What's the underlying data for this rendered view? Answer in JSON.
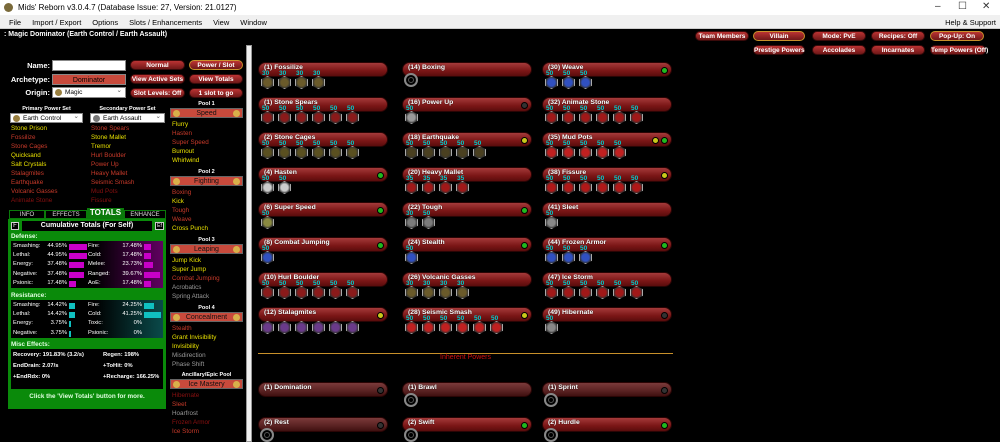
{
  "window": {
    "title": "Mids' Reborn v3.0.4.7 (Database Issue: 27, Version: 21.0127)",
    "menu": [
      "File",
      "Import / Export",
      "Options",
      "Slots / Enhancements",
      "View",
      "Window"
    ],
    "help": "Help & Support"
  },
  "header": ": Magic Dominator (Earth Control / Earth Assault)",
  "top_buttons": [
    "Team Members",
    "Villain",
    "Mode: PvE",
    "Recipes: Off",
    "Pop-Up: On",
    "Prestige Powers",
    "Accolades",
    "Incarnates",
    "Temp Powers (Off)"
  ],
  "char": {
    "name_label": "Name:",
    "name_value": "",
    "archetype_label": "Archetype:",
    "archetype": "Dominator",
    "origin_label": "Origin:",
    "origin": "Magic"
  },
  "mid_buttons": [
    "Normal",
    "Power / Slot",
    "View Active Sets",
    "View Totals",
    "Slot Levels: Off",
    "1 slot to go"
  ],
  "primary": {
    "label": "Primary Power Set",
    "set": "Earth Control",
    "powers": [
      [
        "Stone Prison",
        "y"
      ],
      [
        "Fossilize",
        "r"
      ],
      [
        "Stone Cages",
        "r"
      ],
      [
        "Quicksand",
        "y"
      ],
      [
        "Salt Crystals",
        "y"
      ],
      [
        "Stalagmites",
        "r"
      ],
      [
        "Earthquake",
        "r"
      ],
      [
        "Volcanic Gasses",
        "r"
      ],
      [
        "Animate Stone",
        "d"
      ]
    ]
  },
  "secondary": {
    "label": "Secondary Power Set",
    "set": "Earth Assault",
    "powers": [
      [
        "Stone Spears",
        "r"
      ],
      [
        "Stone Mallet",
        "y"
      ],
      [
        "Tremor",
        "y"
      ],
      [
        "Hurl Boulder",
        "r"
      ],
      [
        "Power Up",
        "r"
      ],
      [
        "Heavy Mallet",
        "r"
      ],
      [
        "Seismic Smash",
        "r"
      ],
      [
        "Mud Pots",
        "d"
      ],
      [
        "Fissure",
        "d"
      ]
    ]
  },
  "pools": [
    {
      "label": "Pool 1",
      "name": "Speed",
      "powers": [
        [
          "Flurry",
          "y"
        ],
        [
          "Hasten",
          "r"
        ],
        [
          "Super Speed",
          "r"
        ],
        [
          "Burnout",
          "y"
        ],
        [
          "Whirlwind",
          "y"
        ]
      ]
    },
    {
      "label": "Pool 2",
      "name": "Fighting",
      "powers": [
        [
          "Boxing",
          "r"
        ],
        [
          "Kick",
          "y"
        ],
        [
          "Tough",
          "r"
        ],
        [
          "Weave",
          "r"
        ],
        [
          "Cross Punch",
          "y"
        ]
      ]
    },
    {
      "label": "Pool 3",
      "name": "Leaping",
      "powers": [
        [
          "Jump Kick",
          "y"
        ],
        [
          "Super Jump",
          "y"
        ],
        [
          "Combat Jumping",
          "r"
        ],
        [
          "Acrobatics",
          "g"
        ],
        [
          "Spring Attack",
          "g"
        ]
      ]
    },
    {
      "label": "Pool 4",
      "name": "Concealment",
      "powers": [
        [
          "Stealth",
          "r"
        ],
        [
          "Grant Invisibility",
          "y"
        ],
        [
          "Invisibility",
          "y"
        ],
        [
          "Misdirection",
          "g"
        ],
        [
          "Phase Shift",
          "g"
        ]
      ]
    },
    {
      "label": "Ancillary/Epic Pool",
      "name": "Ice Mastery",
      "powers": [
        [
          "Hibernate",
          "d"
        ],
        [
          "Sleet",
          "r"
        ],
        [
          "Hoarfrost",
          "g"
        ],
        [
          "Frozen Armor",
          "d"
        ],
        [
          "Ice Storm",
          "r"
        ]
      ]
    }
  ],
  "tabs": [
    "INFO",
    "EFFECTS",
    "TOTALS",
    "ENHANCE"
  ],
  "totals": {
    "title": "Cumulative Totals (For Self)",
    "f": "F",
    "ef": "Ef",
    "defense_label": "Defense:",
    "defense": [
      [
        "Smashing:",
        "44.95%",
        44.95
      ],
      [
        "Lethal:",
        "44.95%",
        44.95
      ],
      [
        "Energy:",
        "37.48%",
        37.48
      ],
      [
        "Negative:",
        "37.48%",
        37.48
      ],
      [
        "Psionic:",
        "17.48%",
        17.48
      ],
      [
        "Fire:",
        "17.48%",
        17.48
      ],
      [
        "Cold:",
        "17.48%",
        17.48
      ],
      [
        "Melee:",
        "23.73%",
        23.73
      ],
      [
        "Ranged:",
        "39.67%",
        39.67
      ],
      [
        "AoE:",
        "17.48%",
        17.48
      ]
    ],
    "resistance_label": "Resistance:",
    "resistance": [
      [
        "Smashing:",
        "14.42%",
        14.42
      ],
      [
        "Lethal:",
        "14.42%",
        14.42
      ],
      [
        "Energy:",
        "3.75%",
        3.75
      ],
      [
        "Negative:",
        "3.75%",
        3.75
      ],
      [
        "Fire:",
        "24.25%",
        24.25
      ],
      [
        "Cold:",
        "41.25%",
        41.25
      ],
      [
        "Toxic:",
        "0%",
        0
      ],
      [
        "Psionic:",
        "0%",
        0
      ]
    ],
    "misc_label": "Misc Effects:",
    "misc": [
      "Recovery: 191.83% (3.2/s)",
      "Regen: 198%",
      "EndDrain: 2.07/s",
      "+ToHit: 0%",
      "+EndRdx: 0%",
      "+Recharge: 166.25%"
    ],
    "footer": "Click the 'View Totals' button for more."
  },
  "build": [
    [
      {
        "n": "(1) Fossilize",
        "s": [
          "30",
          "30",
          "30",
          "30"
        ],
        "c": "#6a5a2a",
        "i": []
      },
      {
        "n": "(1) Stone Spears",
        "s": [
          "50",
          "50",
          "50",
          "50",
          "50",
          "50"
        ],
        "c": "#8a1a1a",
        "i": []
      },
      {
        "n": "(2) Stone Cages",
        "s": [
          "50",
          "50",
          "50",
          "50",
          "50",
          "50"
        ],
        "c": "#5a5020",
        "i": []
      },
      {
        "n": "(4) Hasten",
        "s": [
          "50",
          "50"
        ],
        "c": "#ccc",
        "i": [
          "green"
        ]
      },
      {
        "n": "(6) Super Speed",
        "s": [
          "50"
        ],
        "c": "#8a8a40",
        "i": [
          "green"
        ]
      },
      {
        "n": "(8) Combat Jumping",
        "s": [
          "50"
        ],
        "c": "#3050c0",
        "i": [
          "green"
        ]
      },
      {
        "n": "(10) Hurl Boulder",
        "s": [
          "50",
          "50",
          "50",
          "50",
          "50",
          "50"
        ],
        "c": "#8a1a1a",
        "i": []
      },
      {
        "n": "(12) Stalagmites",
        "s": [
          "",
          "",
          "",
          "",
          "",
          ""
        ],
        "c": "#6a3a8a",
        "i": [
          "yellow"
        ]
      }
    ],
    [
      {
        "n": "(14) Boxing",
        "s": [],
        "c": "",
        "i": []
      },
      {
        "n": "(16) Power Up",
        "s": [
          "50"
        ],
        "c": "#999",
        "i": [
          "dark"
        ]
      },
      {
        "n": "(18) Earthquake",
        "s": [
          "50",
          "50",
          "50",
          "50",
          "50"
        ],
        "c": "#4a4020",
        "i": [
          "yellow"
        ]
      },
      {
        "n": "(20) Heavy Mallet",
        "s": [
          "35",
          "35",
          "35",
          "35"
        ],
        "c": "#a01818",
        "i": []
      },
      {
        "n": "(22) Tough",
        "s": [
          "30",
          "50"
        ],
        "c": "#7a7a7a",
        "i": [
          "green"
        ]
      },
      {
        "n": "(24) Stealth",
        "s": [
          "50"
        ],
        "c": "#3050c0",
        "i": [
          "green"
        ]
      },
      {
        "n": "(26) Volcanic Gasses",
        "s": [
          "30",
          "30",
          "30",
          "30"
        ],
        "c": "#6a5a2a",
        "i": []
      },
      {
        "n": "(28) Seismic Smash",
        "s": [
          "50",
          "50",
          "50",
          "50",
          "50",
          "50"
        ],
        "c": "#c02020",
        "i": [
          "yellow"
        ]
      }
    ],
    [
      {
        "n": "(30) Weave",
        "s": [
          "50",
          "50",
          "50"
        ],
        "c": "#3050c0",
        "i": [
          "green"
        ]
      },
      {
        "n": "(32) Animate Stone",
        "s": [
          "50",
          "50",
          "50",
          "50",
          "50",
          "50"
        ],
        "c": "#a01818",
        "i": []
      },
      {
        "n": "(35) Mud Pots",
        "s": [
          "50",
          "50",
          "50",
          "50",
          "50"
        ],
        "c": "#c02020",
        "i": [
          "yellow",
          "green"
        ]
      },
      {
        "n": "(38) Fissure",
        "s": [
          "50",
          "50",
          "50",
          "50",
          "50",
          "50"
        ],
        "c": "#b01818",
        "i": [
          "yellow"
        ]
      },
      {
        "n": "(41) Sleet",
        "s": [
          "50"
        ],
        "c": "#888",
        "i": []
      },
      {
        "n": "(44) Frozen Armor",
        "s": [
          "50",
          "50",
          "50"
        ],
        "c": "#3050c0",
        "i": [
          "green"
        ]
      },
      {
        "n": "(47) Ice Storm",
        "s": [
          "50",
          "50",
          "50",
          "50",
          "50",
          "50"
        ],
        "c": "#a01818",
        "i": []
      },
      {
        "n": "(49) Hibernate",
        "s": [
          "50"
        ],
        "c": "#888",
        "i": [
          "dark"
        ]
      }
    ]
  ],
  "inherent_label": "Inherent Powers",
  "inherent": [
    [
      {
        "n": "(1) Domination",
        "e": false,
        "i": [
          "dark"
        ],
        "dim": true
      },
      {
        "n": "(2) Rest",
        "e": true,
        "i": [
          "dark"
        ],
        "dim": true
      }
    ],
    [
      {
        "n": "(1) Brawl",
        "e": true,
        "i": [],
        "dim": true
      },
      {
        "n": "(2) Swift",
        "e": true,
        "i": [
          "green"
        ],
        "dim": false
      }
    ],
    [
      {
        "n": "(1) Sprint",
        "e": true,
        "i": [
          "dark"
        ],
        "dim": true
      },
      {
        "n": "(2) Hurdle",
        "e": true,
        "i": [
          "green"
        ],
        "dim": false
      }
    ]
  ],
  "colors": {
    "green": "#1fb81f",
    "yellow": "#c8c81a",
    "dark": "#333",
    "totals_bg": "#0a8a0a",
    "defense_bar": "#c800c8",
    "resist_bar": "#10c0c0"
  }
}
